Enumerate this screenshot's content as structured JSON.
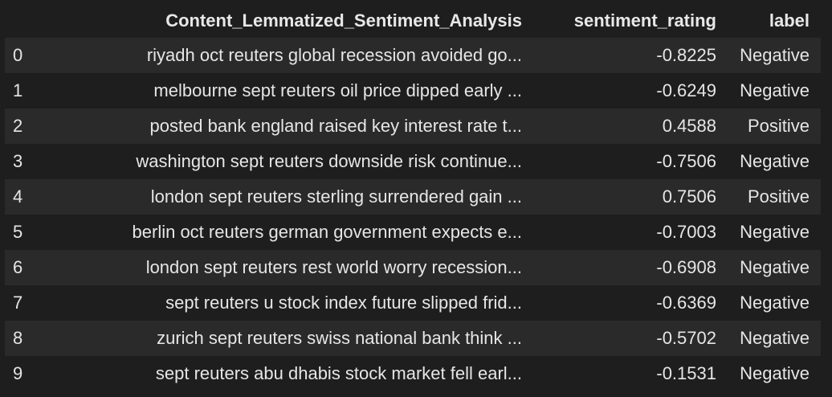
{
  "table": {
    "columns": [
      "",
      "Content_Lemmatized_Sentiment_Analysis",
      "sentiment_rating",
      "label"
    ],
    "rows": [
      {
        "index": "0",
        "content": "riyadh oct reuters global recession avoided go...",
        "rating": "-0.8225",
        "label": "Negative"
      },
      {
        "index": "1",
        "content": "melbourne sept reuters oil price dipped early ...",
        "rating": "-0.6249",
        "label": "Negative"
      },
      {
        "index": "2",
        "content": "posted bank england raised key interest rate t...",
        "rating": "0.4588",
        "label": "Positive"
      },
      {
        "index": "3",
        "content": "washington sept reuters downside risk continue...",
        "rating": "-0.7506",
        "label": "Negative"
      },
      {
        "index": "4",
        "content": "london sept reuters sterling surrendered gain ...",
        "rating": "0.7506",
        "label": "Positive"
      },
      {
        "index": "5",
        "content": "berlin oct reuters german government expects e...",
        "rating": "-0.7003",
        "label": "Negative"
      },
      {
        "index": "6",
        "content": "london sept reuters rest world worry recession...",
        "rating": "-0.6908",
        "label": "Negative"
      },
      {
        "index": "7",
        "content": "sept reuters u stock index future slipped frid...",
        "rating": "-0.6369",
        "label": "Negative"
      },
      {
        "index": "8",
        "content": "zurich sept reuters swiss national bank think ...",
        "rating": "-0.5702",
        "label": "Negative"
      },
      {
        "index": "9",
        "content": "sept reuters abu dhabis stock market fell earl...",
        "rating": "-0.1531",
        "label": "Negative"
      }
    ]
  }
}
